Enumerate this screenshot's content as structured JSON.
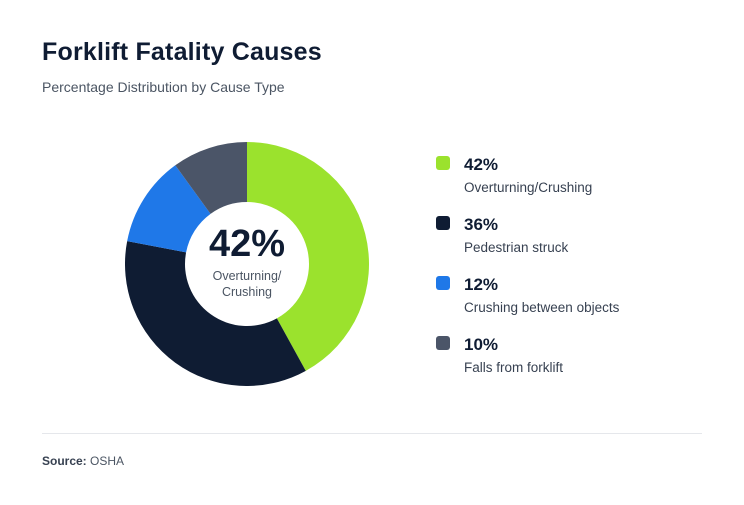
{
  "header": {
    "title": "Forklift Fatality Causes",
    "subtitle": "Percentage Distribution by Cause Type"
  },
  "center": {
    "value": "42%",
    "label_line1": "Overturning/",
    "label_line2": "Crushing"
  },
  "legend": [
    {
      "value": "42%",
      "label": "Overturning/Crushing",
      "color": "#9be22d"
    },
    {
      "value": "36%",
      "label": "Pedestrian struck",
      "color": "#0f1c33"
    },
    {
      "value": "12%",
      "label": "Crushing between objects",
      "color": "#1f78e8"
    },
    {
      "value": "10%",
      "label": "Falls from forklift",
      "color": "#4b5568"
    }
  ],
  "footer": {
    "source_label": "Source:",
    "source_value": "OSHA"
  },
  "chart_data": {
    "type": "pie",
    "variant": "donut",
    "title": "Forklift Fatality Causes",
    "subtitle": "Percentage Distribution by Cause Type",
    "categories": [
      "Overturning/Crushing",
      "Pedestrian struck",
      "Crushing between objects",
      "Falls from forklift"
    ],
    "values": [
      42,
      36,
      12,
      10
    ],
    "colors": [
      "#9be22d",
      "#0f1c33",
      "#1f78e8",
      "#4b5568"
    ],
    "unit": "%",
    "center_annotation": "42% Overturning/Crushing",
    "legend_position": "right",
    "source": "OSHA"
  }
}
